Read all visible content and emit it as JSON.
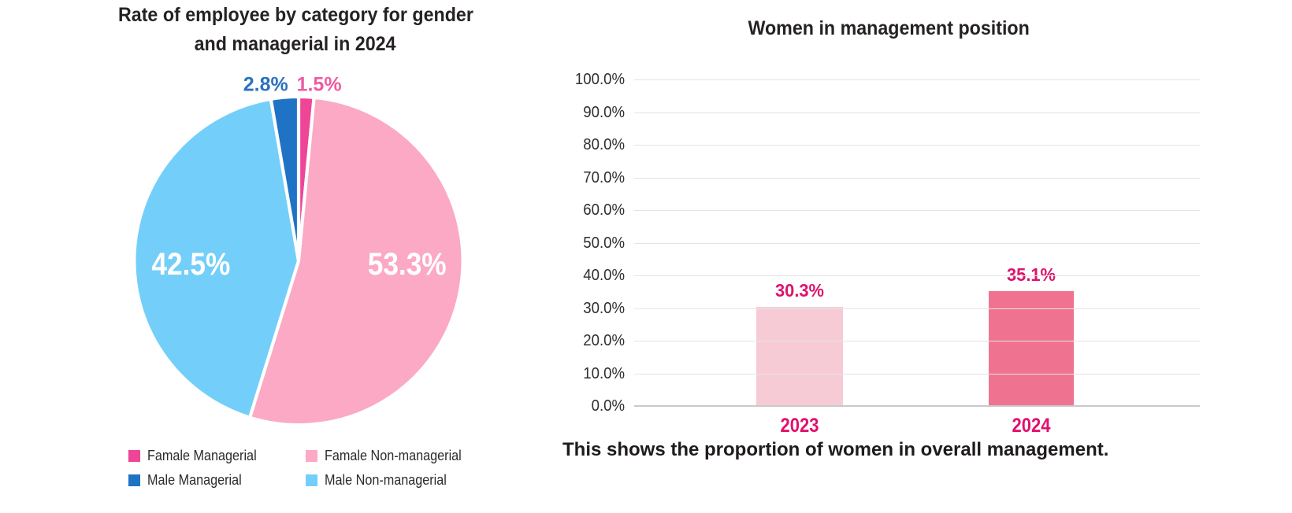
{
  "left_chart": {
    "title_lines": [
      "Rate of employee by category for gender",
      "and managerial in 2024"
    ]
  },
  "right_chart": {
    "title": "Women in management position",
    "caption": "This shows the proportion of women in overall management."
  },
  "chart_data": [
    {
      "type": "pie",
      "title": "Rate of employee by category for gender and managerial in 2024",
      "start_angle": "12-oclock",
      "direction": "clockwise",
      "slices": [
        {
          "label": "Famale Managerial",
          "value": 1.5,
          "display": "1.5%",
          "color": "#ee4597",
          "label_color": "#ef5ba1",
          "label_position": "outside"
        },
        {
          "label": "Famale Non-managerial",
          "value": 53.3,
          "display": "53.3%",
          "color": "#fba9c4",
          "label_color": "#ffffff",
          "label_position": "inside"
        },
        {
          "label": "Male Non-managerial",
          "value": 42.5,
          "display": "42.5%",
          "color": "#73cff9",
          "label_color": "#ffffff",
          "label_position": "inside"
        },
        {
          "label": "Male Managerial",
          "value": 2.8,
          "display": "2.8%",
          "color": "#1f73c5",
          "label_color": "#2b72c0",
          "label_position": "outside"
        }
      ],
      "legend": [
        {
          "label": "Famale Managerial",
          "color": "#ee4597"
        },
        {
          "label": "Famale Non-managerial",
          "color": "#fba9c4"
        },
        {
          "label": "Male Managerial",
          "color": "#1f73c5"
        },
        {
          "label": "Male Non-managerial",
          "color": "#73cff9"
        }
      ],
      "legend_position": "bottom"
    },
    {
      "type": "bar",
      "title": "Women in management position",
      "categories": [
        "2023",
        "2024"
      ],
      "values": [
        30.3,
        35.1
      ],
      "value_labels": [
        "30.3%",
        "35.1%"
      ],
      "bar_colors": [
        "#f6cbd6",
        "#ef7390"
      ],
      "ylim": [
        0,
        100
      ],
      "ytick_labels": [
        "100.0%",
        "90.0%",
        "80.0%",
        "70.0%",
        "60.0%",
        "50.0%",
        "40.0%",
        "30.0%",
        "20.0%",
        "10.0%",
        "0.0%"
      ],
      "grid": true,
      "legend_position": "none",
      "value_label_color": "#dc146c",
      "category_label_color": "#e2106e",
      "caption": "This shows the proportion of women in overall management."
    }
  ]
}
